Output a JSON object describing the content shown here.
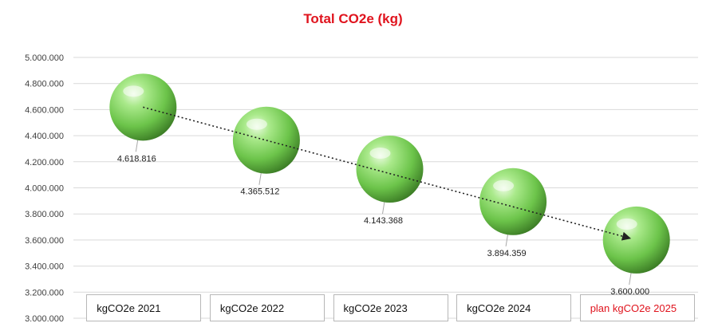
{
  "chart_data": {
    "type": "scatter",
    "title": "Total CO2e (kg)",
    "title_color": "#e0141e",
    "categories": [
      "kgCO2e 2021",
      "kgCO2e 2022",
      "kgCO2e 2023",
      "kgCO2e 2024",
      "plan kgCO2e 2025"
    ],
    "category_colors": [
      "#111111",
      "#111111",
      "#111111",
      "#111111",
      "#e0141e"
    ],
    "values": [
      4618816,
      4365512,
      4143368,
      3894359,
      3600000
    ],
    "value_labels": [
      "4.618.816",
      "4.365.512",
      "4.143.368",
      "3.894.359",
      "3.600.000"
    ],
    "y_ticks": [
      "3.000.000",
      "3.200.000",
      "3.400.000",
      "3.600.000",
      "3.800.000",
      "4.000.000",
      "4.200.000",
      "4.400.000",
      "4.600.000",
      "4.800.000",
      "5.000.000"
    ],
    "ylim": [
      3000000,
      5000000
    ],
    "grid": true,
    "marker": "green-sphere",
    "marker_color": "#7fd060",
    "trendline": "dotted-arrow"
  }
}
